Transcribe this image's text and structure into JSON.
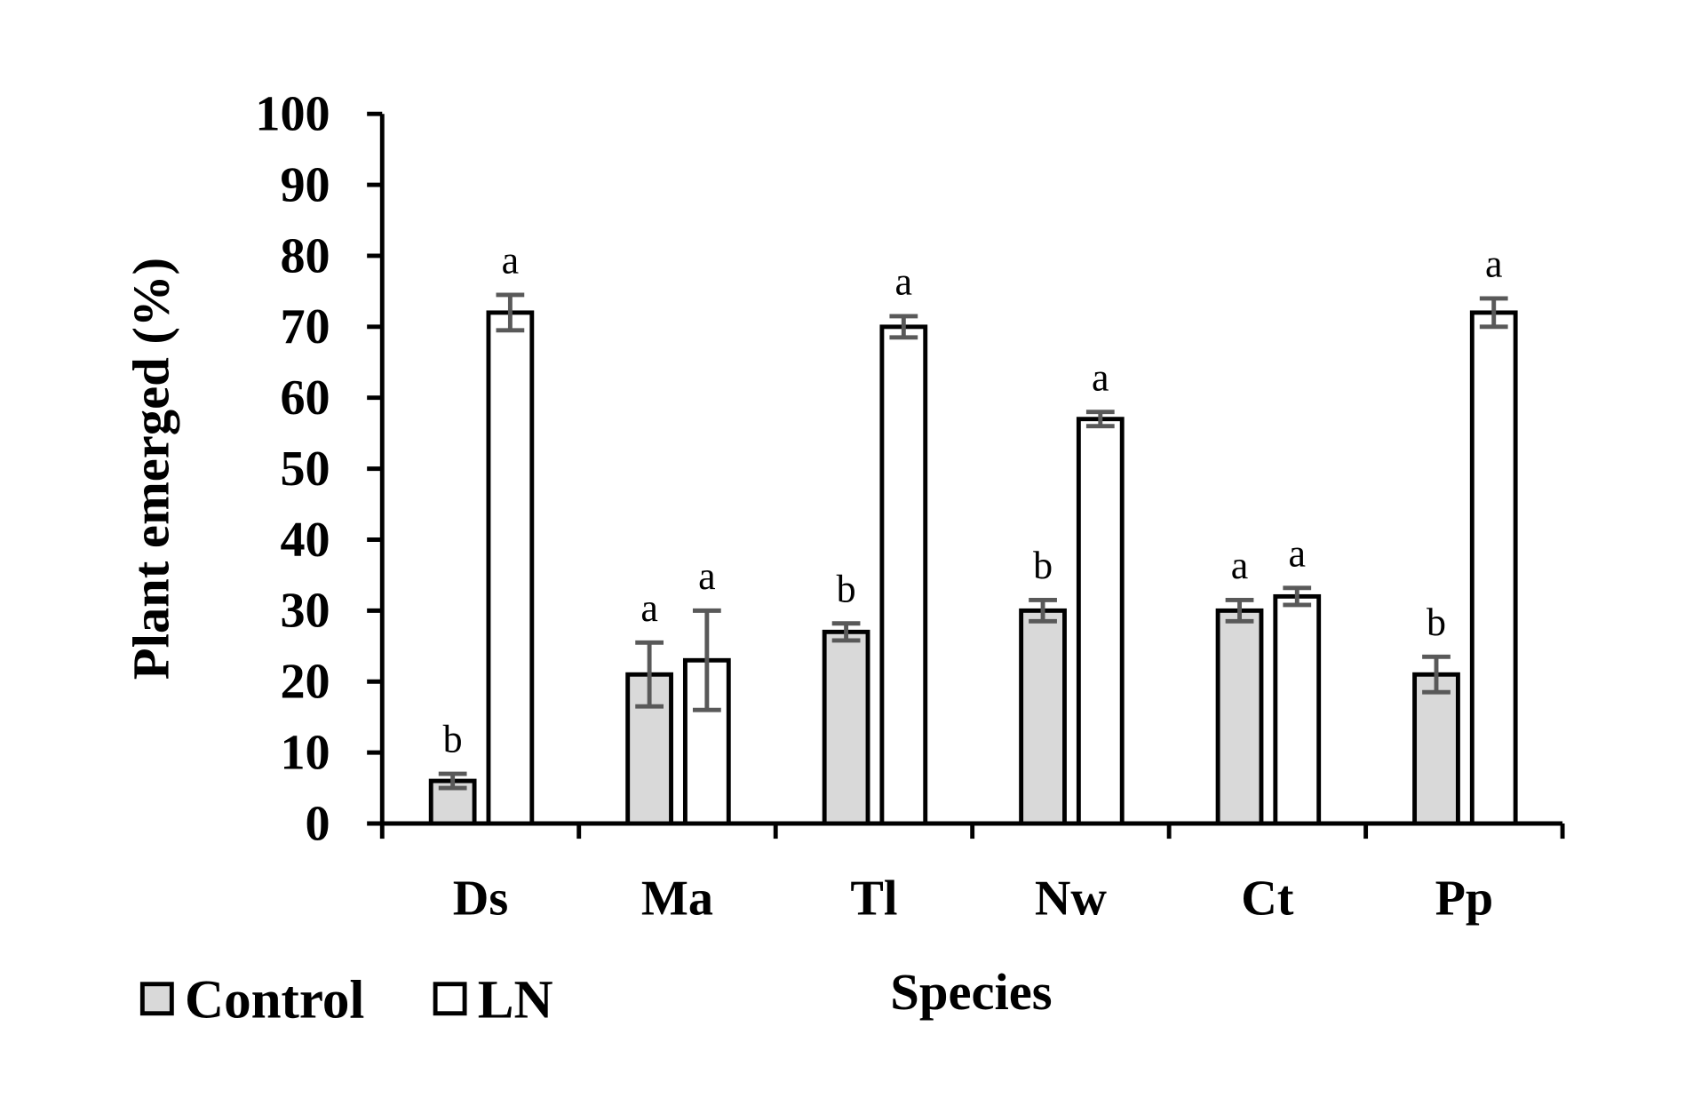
{
  "chart_data": {
    "type": "bar",
    "title": "",
    "xlabel": "Species",
    "ylabel": "Plant emerged (%)",
    "ylim": [
      0,
      100
    ],
    "yticks": [
      0,
      10,
      20,
      30,
      40,
      50,
      60,
      70,
      80,
      90,
      100
    ],
    "categories": [
      "Ds",
      "Ma",
      "Tl",
      "Nw",
      "Ct",
      "Pp"
    ],
    "series": [
      {
        "name": "Control",
        "color": "#d9d9d9",
        "values": [
          6,
          21,
          27,
          30,
          30,
          21
        ],
        "errors": [
          1,
          4.5,
          1.2,
          1.5,
          1.5,
          2.5
        ],
        "letters": [
          "b",
          "a",
          "b",
          "b",
          "a",
          "b"
        ]
      },
      {
        "name": "LN",
        "color": "#ffffff",
        "values": [
          72,
          23,
          70,
          57,
          32,
          72
        ],
        "errors": [
          2.5,
          7,
          1.5,
          1,
          1.2,
          2
        ],
        "letters": [
          "a",
          "a",
          "a",
          "a",
          "a",
          "a"
        ]
      }
    ],
    "grid": false,
    "legend": "bottom-left"
  }
}
